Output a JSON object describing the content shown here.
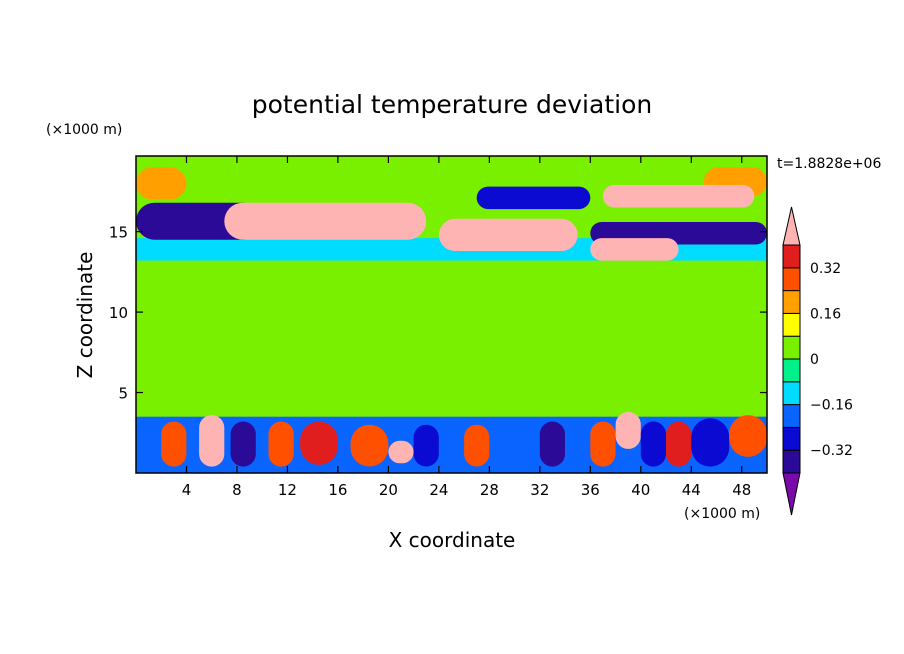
{
  "chart_data": {
    "type": "heatmap",
    "title": "potential temperature deviation",
    "xlabel": "X coordinate",
    "ylabel": "Z coordinate",
    "x_unit": "(×1000 m)",
    "y_unit": "(×1000 m)",
    "time_label": "t=1.8828e+06",
    "xlim": [
      0,
      50
    ],
    "ylim": [
      0,
      19.7
    ],
    "x_ticks": [
      4,
      8,
      12,
      16,
      20,
      24,
      28,
      32,
      36,
      40,
      44,
      48
    ],
    "y_ticks": [
      5,
      10,
      15
    ],
    "colorbar": {
      "levels": [
        -0.4,
        -0.32,
        -0.24,
        -0.16,
        -0.08,
        0,
        0.08,
        0.16,
        0.24,
        0.32,
        0.4
      ],
      "tick_labels": [
        "0.32",
        "0.16",
        "0",
        "−0.16",
        "−0.32"
      ],
      "tick_values": [
        0.32,
        0.16,
        0,
        -0.16,
        -0.32
      ],
      "colors_low_to_high": [
        "#7a0aaa",
        "#2a0a96",
        "#0a0ad2",
        "#0a64ff",
        "#00dcff",
        "#00f08c",
        "#78f000",
        "#ffff00",
        "#ffa000",
        "#ff5000",
        "#e11e1e",
        "#ffb4b4"
      ]
    },
    "regions": [
      {
        "x": [
          0,
          50
        ],
        "z": [
          0,
          19.7
        ],
        "value": 0
      },
      {
        "x": [
          0,
          50
        ],
        "z": [
          3.5,
          12.5
        ],
        "value": 0.04
      },
      {
        "x": [
          0,
          50
        ],
        "z": [
          13.2,
          14.6
        ],
        "value": -0.1
      },
      {
        "x": [
          0,
          10
        ],
        "z": [
          14.5,
          16.8
        ],
        "value": -0.35
      },
      {
        "x": [
          27,
          36
        ],
        "z": [
          16.4,
          17.8
        ],
        "value": -0.3
      },
      {
        "x": [
          36,
          50
        ],
        "z": [
          14.2,
          15.6
        ],
        "value": -0.35
      },
      {
        "x": [
          0,
          4
        ],
        "z": [
          17.0,
          19.0
        ],
        "value": 0.2
      },
      {
        "x": [
          45,
          50
        ],
        "z": [
          17.2,
          19.0
        ],
        "value": 0.16
      },
      {
        "x": [
          7,
          23
        ],
        "z": [
          14.5,
          16.8
        ],
        "value": 0.42
      },
      {
        "x": [
          24,
          35
        ],
        "z": [
          13.8,
          15.8
        ],
        "value": 0.42
      },
      {
        "x": [
          37,
          49
        ],
        "z": [
          16.5,
          17.9
        ],
        "value": 0.42
      },
      {
        "x": [
          36,
          43
        ],
        "z": [
          13.2,
          14.6
        ],
        "value": 0.42
      },
      {
        "x": [
          0,
          50
        ],
        "z": [
          0,
          3.5
        ],
        "value": -0.2
      },
      {
        "x": [
          2,
          4
        ],
        "z": [
          0.4,
          3.2
        ],
        "value": 0.3
      },
      {
        "x": [
          5,
          7
        ],
        "z": [
          0.4,
          3.6
        ],
        "value": 0.4
      },
      {
        "x": [
          7.5,
          9.5
        ],
        "z": [
          0.4,
          3.2
        ],
        "value": -0.36
      },
      {
        "x": [
          10.5,
          12.5
        ],
        "z": [
          0.4,
          3.2
        ],
        "value": 0.3
      },
      {
        "x": [
          13,
          16
        ],
        "z": [
          0.5,
          3.2
        ],
        "value": 0.32
      },
      {
        "x": [
          17,
          20
        ],
        "z": [
          0.4,
          3.0
        ],
        "value": 0.24
      },
      {
        "x": [
          20,
          22
        ],
        "z": [
          0.6,
          2.0
        ],
        "value": 0.42
      },
      {
        "x": [
          22,
          24
        ],
        "z": [
          0.4,
          3.0
        ],
        "value": -0.3
      },
      {
        "x": [
          26,
          28
        ],
        "z": [
          0.4,
          3.0
        ],
        "value": 0.24
      },
      {
        "x": [
          30,
          32
        ],
        "z": [
          0.4,
          3.0
        ],
        "value": -0.2
      },
      {
        "x": [
          32,
          34
        ],
        "z": [
          0.4,
          3.2
        ],
        "value": -0.38
      },
      {
        "x": [
          36,
          38
        ],
        "z": [
          0.4,
          3.2
        ],
        "value": 0.3
      },
      {
        "x": [
          38,
          40
        ],
        "z": [
          1.5,
          3.8
        ],
        "value": 0.42
      },
      {
        "x": [
          40,
          42
        ],
        "z": [
          0.4,
          3.2
        ],
        "value": -0.3
      },
      {
        "x": [
          42,
          44
        ],
        "z": [
          0.4,
          3.2
        ],
        "value": 0.32
      },
      {
        "x": [
          44,
          47
        ],
        "z": [
          0.4,
          3.4
        ],
        "value": -0.3
      },
      {
        "x": [
          47,
          50
        ],
        "z": [
          1.0,
          3.6
        ],
        "value": 0.3
      }
    ]
  }
}
